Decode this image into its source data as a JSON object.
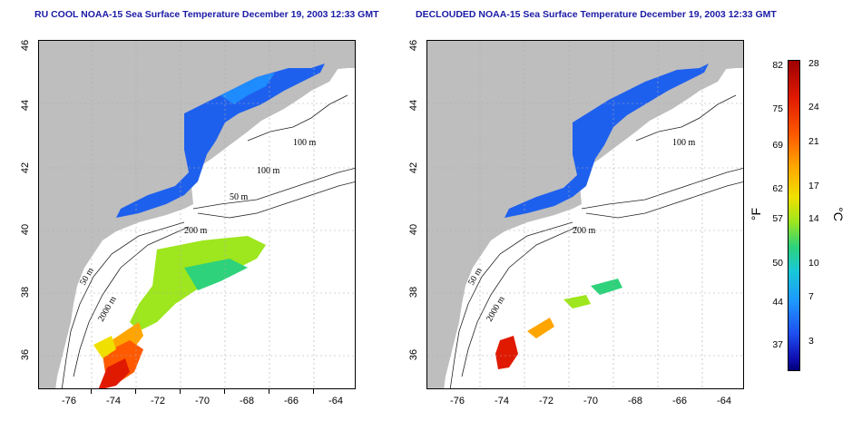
{
  "left_title": "RU COOL NOAA-15 Sea Surface Temperature December 19, 2003 12:33 GMT",
  "right_title": "DECLOUDED NOAA-15 Sea Surface Temperature December 19, 2003 12:33 GMT",
  "x_ticks": [
    "-76",
    "-74",
    "-72",
    "-70",
    "-68",
    "-66",
    "-64"
  ],
  "y_ticks": [
    "46",
    "44",
    "42",
    "40",
    "38",
    "36"
  ],
  "contours": {
    "c100a": "100 m",
    "c100b": "100 m",
    "c50": "50 m",
    "c200": "200 m",
    "c50b": "50 m",
    "c2000": "2000 m"
  },
  "colorbar": {
    "fahrenheit_unit": "°F",
    "celsius_unit": "°C",
    "fahrenheit_ticks": [
      "82",
      "75",
      "69",
      "62",
      "57",
      "50",
      "44",
      "37"
    ],
    "celsius_ticks": [
      "28",
      "24",
      "21",
      "17",
      "14",
      "10",
      "7",
      "3"
    ]
  },
  "colors": {
    "land": "#bebebe",
    "cold": "#1e50f0",
    "warm": "#e01a00",
    "title": "#1a1aa6"
  }
}
